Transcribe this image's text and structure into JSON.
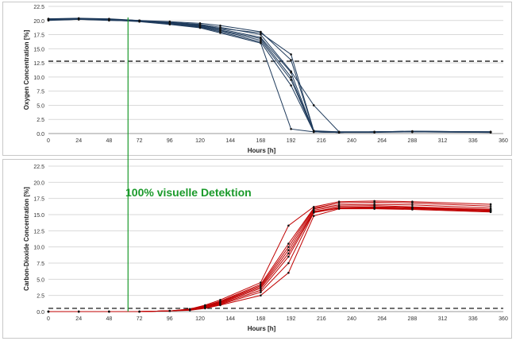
{
  "annotation": "100% visuelle Detektion",
  "marker_line_x": 63,
  "colors": {
    "oxygen": "#1f3b5c",
    "co2": "#c00000",
    "marker": "#1a9a2a",
    "threshold": "#000000"
  },
  "chart_data": [
    {
      "type": "line",
      "ylabel": "Oxygen Concentration [%]",
      "xlabel": "Hours [h]",
      "xlim": [
        0,
        360
      ],
      "ylim": [
        0,
        22.5
      ],
      "xticks": [
        "0",
        "24",
        "48",
        "72",
        "96",
        "120",
        "144",
        "168",
        "192",
        "216",
        "240",
        "264",
        "288",
        "312",
        "336",
        "360"
      ],
      "yticks": [
        "0.0",
        "2.5",
        "5.0",
        "7.5",
        "10.0",
        "12.5",
        "15.0",
        "17.5",
        "20.0",
        "22.5"
      ],
      "threshold": 12.8,
      "x": [
        0,
        24,
        48,
        72,
        96,
        120,
        136,
        168,
        192,
        210,
        230,
        258,
        288,
        350
      ],
      "series": [
        {
          "values": [
            20.3,
            20.3,
            20.2,
            20.0,
            19.8,
            19.5,
            19.1,
            18.0,
            13.0,
            0.4,
            0.3,
            0.3,
            0.4,
            0.3
          ]
        },
        {
          "values": [
            20.1,
            20.2,
            20.1,
            19.9,
            19.7,
            19.3,
            18.8,
            17.5,
            11.0,
            5.0,
            0.3,
            0.3,
            0.4,
            0.3
          ]
        },
        {
          "values": [
            20.2,
            20.3,
            20.2,
            20.0,
            19.6,
            19.1,
            18.5,
            17.0,
            10.8,
            0.3,
            0.2,
            0.3,
            0.3,
            0.3
          ]
        },
        {
          "values": [
            20.0,
            20.2,
            20.0,
            19.9,
            19.5,
            19.0,
            18.3,
            16.8,
            10.0,
            0.3,
            0.2,
            0.3,
            0.3,
            0.3
          ]
        },
        {
          "values": [
            20.3,
            20.4,
            20.3,
            20.0,
            19.5,
            18.9,
            18.2,
            16.5,
            9.5,
            0.3,
            0.2,
            0.3,
            0.3,
            0.3
          ]
        },
        {
          "values": [
            20.2,
            20.3,
            20.1,
            19.9,
            19.4,
            18.8,
            18.0,
            16.2,
            8.5,
            0.3,
            0.2,
            0.3,
            0.3,
            0.2
          ]
        },
        {
          "values": [
            20.1,
            20.2,
            20.1,
            19.8,
            19.3,
            18.7,
            17.8,
            16.0,
            0.8,
            0.3,
            0.2,
            0.2,
            0.3,
            0.2
          ]
        },
        {
          "values": [
            20.2,
            20.3,
            20.2,
            20.0,
            19.6,
            19.2,
            18.6,
            17.8,
            14.0,
            0.5,
            0.3,
            0.3,
            0.4,
            0.3
          ]
        }
      ]
    },
    {
      "type": "line",
      "ylabel": "Carbon-Dioxide Concentration [%]",
      "xlabel": "Hours [h]",
      "xlim": [
        0,
        360
      ],
      "ylim": [
        0,
        22.5
      ],
      "xticks": [
        "0",
        "24",
        "48",
        "72",
        "96",
        "120",
        "144",
        "168",
        "192",
        "216",
        "240",
        "264",
        "288",
        "312",
        "336",
        "360"
      ],
      "yticks": [
        "0.0",
        "2.5",
        "5.0",
        "7.5",
        "10.0",
        "12.5",
        "15.0",
        "17.5",
        "20.0",
        "22.5"
      ],
      "threshold": 0.5,
      "x": [
        0,
        24,
        48,
        72,
        96,
        112,
        124,
        136,
        168,
        190,
        210,
        230,
        258,
        288,
        350
      ],
      "series": [
        {
          "values": [
            0.0,
            0.0,
            0.0,
            0.0,
            0.1,
            0.4,
            1.0,
            1.8,
            4.5,
            13.3,
            16.2,
            17.0,
            17.1,
            17.0,
            16.6
          ]
        },
        {
          "values": [
            0.0,
            0.0,
            0.0,
            0.0,
            0.1,
            0.4,
            0.9,
            1.6,
            4.2,
            10.5,
            16.0,
            16.8,
            16.9,
            16.8,
            16.3
          ]
        },
        {
          "values": [
            0.0,
            0.0,
            0.0,
            0.0,
            0.1,
            0.3,
            0.8,
            1.5,
            4.0,
            10.0,
            15.9,
            16.5,
            16.6,
            16.5,
            16.0
          ]
        },
        {
          "values": [
            0.0,
            0.0,
            0.0,
            0.0,
            0.1,
            0.3,
            0.8,
            1.4,
            3.8,
            9.5,
            15.7,
            16.3,
            16.4,
            16.2,
            15.8
          ]
        },
        {
          "values": [
            0.0,
            0.0,
            0.0,
            0.0,
            0.1,
            0.3,
            0.7,
            1.3,
            3.6,
            9.0,
            15.5,
            16.1,
            16.2,
            16.1,
            15.7
          ]
        },
        {
          "values": [
            0.0,
            0.0,
            0.0,
            0.0,
            0.1,
            0.3,
            0.7,
            1.2,
            3.3,
            8.5,
            15.4,
            16.0,
            16.1,
            16.0,
            15.6
          ]
        },
        {
          "values": [
            0.0,
            0.0,
            0.0,
            0.0,
            0.1,
            0.3,
            0.6,
            1.1,
            3.0,
            7.5,
            15.3,
            16.0,
            16.0,
            15.9,
            15.5
          ]
        },
        {
          "values": [
            0.0,
            0.0,
            0.0,
            0.0,
            0.1,
            0.2,
            0.5,
            1.0,
            2.5,
            6.0,
            14.8,
            15.9,
            15.9,
            15.8,
            15.4
          ]
        }
      ]
    }
  ]
}
